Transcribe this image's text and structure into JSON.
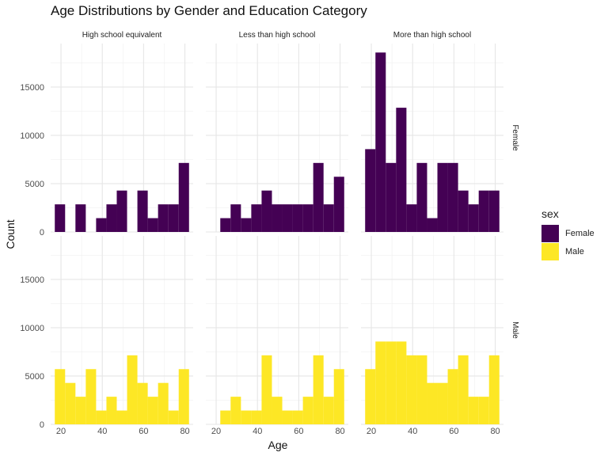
{
  "chart_data": {
    "type": "bar",
    "title": "Age Distributions by Gender and Education Category",
    "xlabel": "Age",
    "ylabel": "Count",
    "xlim": [
      15,
      84
    ],
    "ylim": [
      0,
      19500
    ],
    "x_ticks": [
      20,
      40,
      60,
      80
    ],
    "y_ticks": [
      0,
      5000,
      10000,
      15000
    ],
    "grid": true,
    "bin_width": 5,
    "bin_starts": [
      17,
      22,
      27,
      32,
      37,
      42,
      47,
      52,
      57,
      62,
      67,
      72,
      77
    ],
    "columns": [
      "High school equivalent",
      "Less than high school",
      "More than high school"
    ],
    "rows": [
      "Female",
      "Male"
    ],
    "legend": {
      "title": "sex",
      "position": "right",
      "entries": [
        {
          "label": "Female",
          "color": "#440154"
        },
        {
          "label": "Male",
          "color": "#fde725"
        }
      ]
    },
    "panels": [
      {
        "column": "High school equivalent",
        "row": "Female",
        "values": [
          2857,
          0,
          2857,
          0,
          1429,
          2857,
          4286,
          0,
          4286,
          1429,
          2857,
          2857,
          7143
        ]
      },
      {
        "column": "Less than high school",
        "row": "Female",
        "values": [
          0,
          1429,
          2857,
          1429,
          2857,
          4286,
          2857,
          2857,
          2857,
          2857,
          7143,
          2857,
          5714
        ]
      },
      {
        "column": "More than high school",
        "row": "Female",
        "values": [
          8571,
          18571,
          7143,
          12857,
          2857,
          7143,
          1429,
          7143,
          7143,
          4286,
          2857,
          4286,
          4286
        ]
      },
      {
        "column": "High school equivalent",
        "row": "Male",
        "values": [
          5714,
          4286,
          2857,
          5714,
          1429,
          2857,
          1429,
          7143,
          4286,
          2857,
          4286,
          1429,
          5714
        ]
      },
      {
        "column": "Less than high school",
        "row": "Male",
        "values": [
          0,
          1429,
          2857,
          1429,
          1429,
          7143,
          2857,
          1429,
          1429,
          2857,
          7143,
          2857,
          5714
        ]
      },
      {
        "column": "More than high school",
        "row": "Male",
        "values": [
          5714,
          8571,
          8571,
          8571,
          7143,
          7143,
          4286,
          4286,
          5714,
          7143,
          2857,
          2857,
          7143
        ]
      }
    ]
  }
}
